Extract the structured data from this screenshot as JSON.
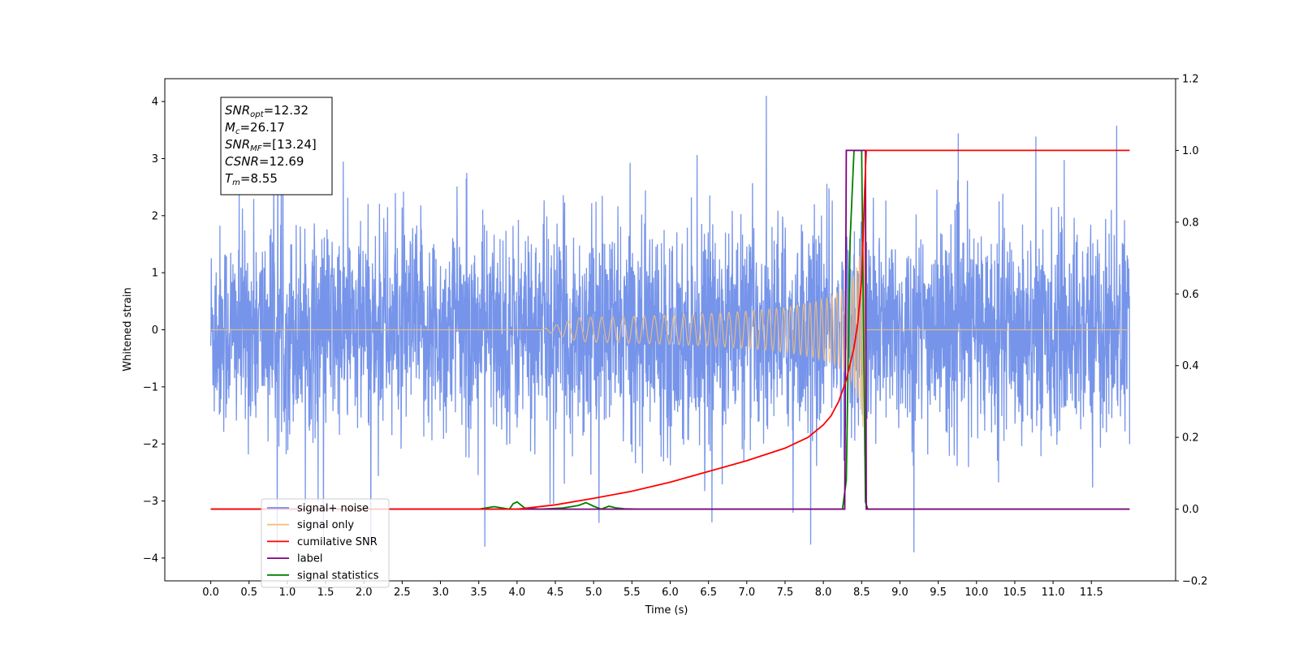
{
  "chart_data": {
    "type": "line",
    "xlabel": "Time (s)",
    "ylabel_left": "Whitened strain",
    "ylabel_right": "",
    "xlim": [
      -0.6,
      12.6
    ],
    "ylim_left": [
      -4.4,
      4.4
    ],
    "ylim_right": [
      -0.2,
      1.2
    ],
    "x_ticks": [
      0.0,
      0.5,
      1.0,
      1.5,
      2.0,
      2.5,
      3.0,
      3.5,
      4.0,
      4.5,
      5.0,
      5.5,
      6.0,
      6.5,
      7.0,
      7.5,
      8.0,
      8.5,
      9.0,
      9.5,
      10.0,
      10.5,
      11.0,
      11.5
    ],
    "x_tick_labels": [
      "0.0",
      "0.5",
      "1.0",
      "1.5",
      "2.0",
      "2.5",
      "3.0",
      "3.5",
      "4.0",
      "4.5",
      "5.0",
      "5.5",
      "6.0",
      "6.5",
      "7.0",
      "7.5",
      "8.0",
      "8.5",
      "9.0",
      "9.5",
      "10.0",
      "10.5",
      "11.0",
      "11.5"
    ],
    "y_left_ticks": [
      -4,
      -3,
      -2,
      -1,
      0,
      1,
      2,
      3,
      4
    ],
    "y_left_tick_labels": [
      "−4",
      "−3",
      "−2",
      "−1",
      "0",
      "1",
      "2",
      "3",
      "4"
    ],
    "y_right_ticks": [
      -0.2,
      0.0,
      0.2,
      0.4,
      0.6,
      0.8,
      1.0,
      1.2
    ],
    "y_right_tick_labels": [
      "−0.2",
      "0.0",
      "0.2",
      "0.4",
      "0.6",
      "0.8",
      "1.0",
      "1.2"
    ],
    "grid": false,
    "legend_position": "bottom-left",
    "series": [
      {
        "name": "signal+ noise",
        "axis": "left",
        "color": "#6f8ee8",
        "description": "whitened noise, amplitude about ±2 with spikes to ±4, x 0 to 12"
      },
      {
        "name": "signal only",
        "axis": "left",
        "color": "#f5c079",
        "chirp_start": 4.3,
        "merger_time": 8.55,
        "peak_amplitude": 2.9
      },
      {
        "name": "cumilative SNR",
        "axis": "right",
        "color": "#ff0000",
        "x": [
          0.0,
          3.5,
          4.0,
          4.5,
          5.0,
          5.5,
          6.0,
          6.5,
          7.0,
          7.5,
          7.8,
          8.0,
          8.1,
          8.2,
          8.3,
          8.4,
          8.45,
          8.5,
          8.55,
          8.56,
          12.0
        ],
        "y": [
          0.0,
          0.0,
          0.0,
          0.012,
          0.03,
          0.05,
          0.075,
          0.105,
          0.135,
          0.17,
          0.2,
          0.235,
          0.26,
          0.3,
          0.36,
          0.45,
          0.52,
          0.64,
          0.95,
          1.0,
          1.0
        ]
      },
      {
        "name": "label",
        "axis": "right",
        "color": "#800080",
        "x": [
          0.0,
          3.5,
          3.6,
          4.0,
          4.1,
          4.6,
          4.8,
          5.4,
          5.5,
          8.28,
          8.3,
          8.55,
          8.56,
          12.0
        ],
        "y": [
          0.0,
          0.0,
          0.0,
          0.0,
          0.0,
          0.0,
          0.0,
          0.0,
          0.0,
          0.0,
          1.0,
          1.0,
          0.0,
          0.0
        ]
      },
      {
        "name": "signal statistics",
        "axis": "right",
        "color": "#008000",
        "x": [
          0.0,
          3.5,
          3.7,
          3.9,
          3.95,
          4.0,
          4.1,
          4.3,
          4.6,
          4.8,
          4.9,
          5.0,
          5.1,
          5.2,
          5.3,
          5.4,
          5.6,
          5.8,
          8.25,
          8.3,
          8.35,
          8.4,
          8.45,
          8.5,
          8.55,
          8.58,
          12.0
        ],
        "y": [
          0.0,
          0.0,
          0.007,
          0.0,
          0.015,
          0.02,
          0.003,
          0.0,
          0.003,
          0.01,
          0.018,
          0.008,
          0.0,
          0.008,
          0.003,
          0.001,
          0.0,
          0.0,
          0.0,
          0.08,
          0.75,
          1.0,
          1.0,
          1.0,
          0.02,
          0.0,
          0.0
        ]
      }
    ],
    "annotation": {
      "lines": [
        {
          "symbol": "SNR",
          "subscript": "opt",
          "value": "=12.32"
        },
        {
          "symbol": "M",
          "subscript": "c",
          "value": "=26.17"
        },
        {
          "symbol": "SNR",
          "subscript": "MF",
          "value": "=[13.24]"
        },
        {
          "symbol": "CSNR",
          "subscript": "",
          "value": "=12.69"
        },
        {
          "symbol": "T",
          "subscript": "m",
          "value": "=8.55"
        }
      ]
    }
  }
}
